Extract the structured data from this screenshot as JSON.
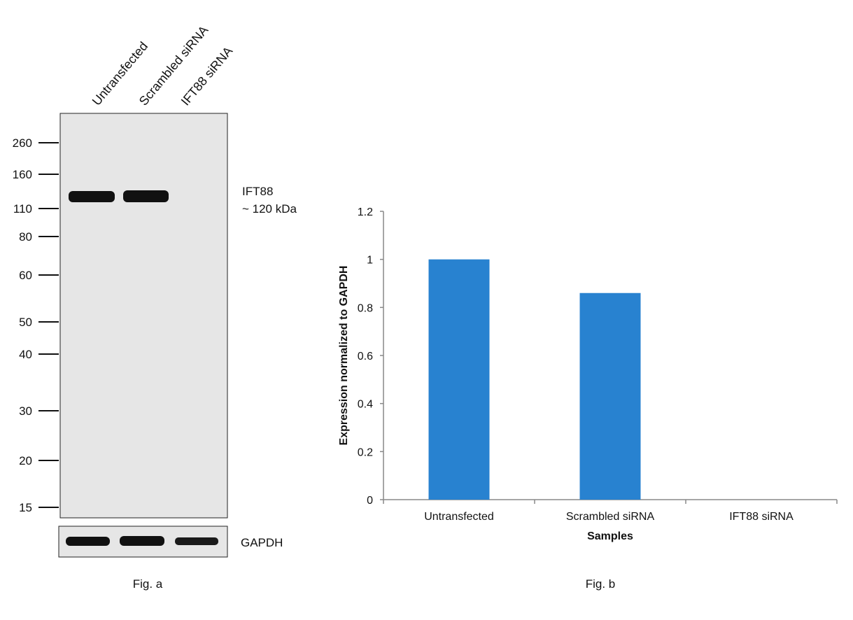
{
  "figure_a": {
    "caption": "Fig. a",
    "lanes": [
      "Untransfected",
      "Scrambled siRNA",
      "IFT88 siRNA"
    ],
    "markers": [
      "260",
      "160",
      "110",
      "80",
      "60",
      "50",
      "40",
      "30",
      "20",
      "15"
    ],
    "target_label": "IFT88",
    "target_size": "~ 120 kDa",
    "loading_control": "GAPDH",
    "band_color": "#111111",
    "membrane_color": "#e6e6e6"
  },
  "figure_b": {
    "caption": "Fig. b"
  },
  "chart_data": {
    "type": "bar",
    "categories": [
      "Untransfected",
      "Scrambled siRNA",
      "IFT88 siRNA"
    ],
    "values": [
      1.0,
      0.86,
      0.0
    ],
    "xlabel": "Samples",
    "ylabel": "Expression normalized to GAPDH",
    "ylim": [
      0,
      1.2
    ],
    "yticks": [
      "0",
      "0.2",
      "0.4",
      "0.6",
      "0.8",
      "1",
      "1.2"
    ],
    "grid": false,
    "bar_color": "#2882d0"
  }
}
